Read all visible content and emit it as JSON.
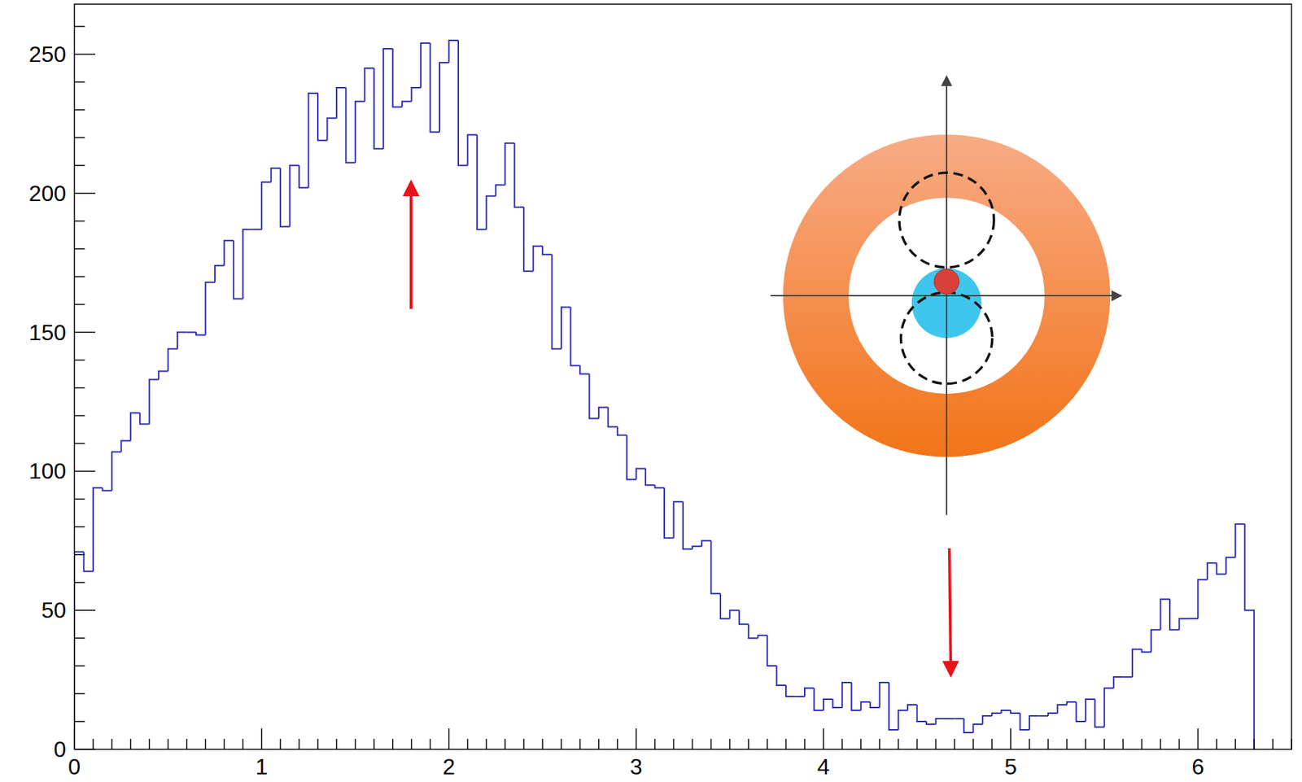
{
  "chart_data": {
    "type": "histogram",
    "color": "#2b2bb8",
    "xlim": [
      0,
      6.5
    ],
    "ylim": [
      0,
      268
    ],
    "xticks": [
      0,
      1,
      2,
      3,
      4,
      5,
      6
    ],
    "yticks": [
      0,
      50,
      100,
      150,
      200,
      250
    ],
    "bins": [
      0,
      0.05,
      0.1,
      0.15,
      0.2,
      0.25,
      0.3,
      0.35,
      0.4,
      0.45,
      0.5,
      0.55,
      0.6,
      0.65,
      0.7,
      0.75,
      0.8,
      0.85,
      0.9,
      0.95,
      1,
      1.05,
      1.1,
      1.15,
      1.2,
      1.25,
      1.3,
      1.35,
      1.4,
      1.45,
      1.5,
      1.55,
      1.6,
      1.65,
      1.7,
      1.75,
      1.8,
      1.85,
      1.9,
      1.95,
      2,
      2.05,
      2.1,
      2.15,
      2.2,
      2.25,
      2.3,
      2.35,
      2.4,
      2.45,
      2.5,
      2.55,
      2.6,
      2.65,
      2.7,
      2.75,
      2.8,
      2.85,
      2.9,
      2.95,
      3,
      3.05,
      3.1,
      3.15,
      3.2,
      3.25,
      3.3,
      3.35,
      3.4,
      3.45,
      3.5,
      3.55,
      3.6,
      3.65,
      3.7,
      3.75,
      3.8,
      3.85,
      3.9,
      3.95,
      4,
      4.05,
      4.1,
      4.15,
      4.2,
      4.25,
      4.3,
      4.35,
      4.4,
      4.45,
      4.5,
      4.55,
      4.6,
      4.65,
      4.7,
      4.75,
      4.8,
      4.85,
      4.9,
      4.95,
      5,
      5.05,
      5.1,
      5.15,
      5.2,
      5.25,
      5.3,
      5.35,
      5.4,
      5.45,
      5.5,
      5.55,
      5.6,
      5.65,
      5.7,
      5.75,
      5.8,
      5.85,
      5.9,
      5.95,
      6,
      6.05,
      6.1,
      6.15,
      6.2,
      6.25,
      6.3
    ],
    "values": [
      71,
      64,
      94,
      93,
      107,
      111,
      121,
      117,
      133,
      136,
      144,
      150,
      150,
      149,
      168,
      174,
      183,
      162,
      187,
      187,
      204,
      209,
      188,
      210,
      202,
      236,
      219,
      227,
      238,
      211,
      233,
      245,
      216,
      252,
      231,
      233,
      238,
      254,
      222,
      247,
      255,
      210,
      221,
      187,
      199,
      203,
      218,
      195,
      172,
      181,
      178,
      144,
      159,
      138,
      135,
      119,
      123,
      116,
      113,
      97,
      101,
      95,
      94,
      76,
      89,
      72,
      73,
      75,
      56,
      47,
      50,
      45,
      40,
      41,
      30,
      23,
      19,
      19,
      22,
      14,
      18,
      15,
      24,
      14,
      17,
      15,
      24,
      7,
      14,
      16,
      10,
      9,
      11,
      11,
      11,
      6,
      9,
      12,
      13,
      14,
      13,
      7,
      12,
      12,
      13,
      16,
      17,
      10,
      18,
      8,
      22,
      26,
      26,
      36,
      35,
      43,
      54,
      43,
      47,
      47,
      61,
      67,
      63,
      69,
      81,
      50
    ]
  }
}
